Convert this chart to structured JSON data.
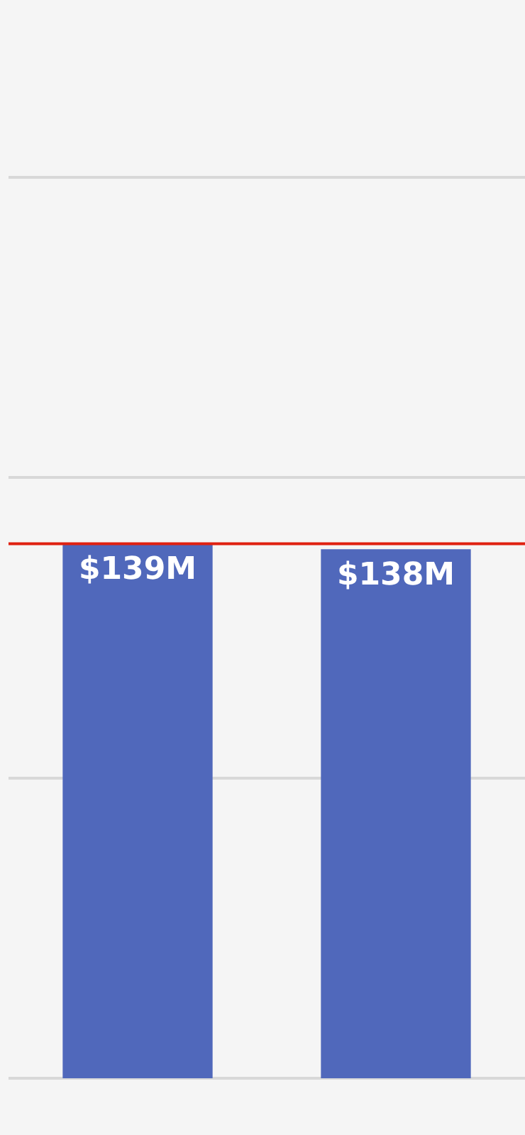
{
  "chart_data": {
    "type": "bar",
    "categories": [
      null,
      null
    ],
    "values": [
      139,
      138
    ],
    "value_labels": [
      "$139M",
      "$138M"
    ],
    "color": "#5068bb",
    "ylim": [
      50,
      200
    ],
    "yticks": [
      {
        "value": 50,
        "label": null
      },
      {
        "value": 100,
        "label": null
      },
      {
        "value": 150,
        "label": null
      },
      {
        "value": 200,
        "label": null
      }
    ],
    "grid": "y",
    "legend": false,
    "ref_lines": [
      {
        "axis": "y",
        "value": 139,
        "color": "#e02010"
      }
    ]
  }
}
